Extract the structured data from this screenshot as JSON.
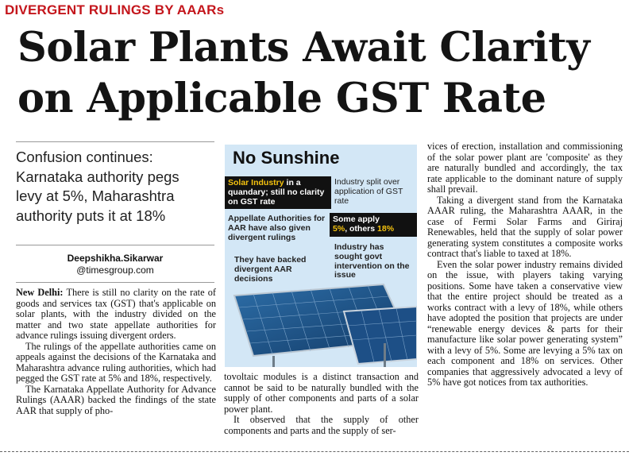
{
  "kicker": "DIVERGENT RULINGS BY AAARs",
  "headline": {
    "line1": "Solar Plants Await Clarity",
    "line2": "on Applicable GST Rate"
  },
  "deck": {
    "line1": "Confusion continues:",
    "line2": "Karnataka authority pegs",
    "line3": "levy at 5%, Maharashtra",
    "line4": "authority puts it at 18%"
  },
  "byline": {
    "name": "Deepshikha.Sikarwar",
    "email": "@timesgroup.com"
  },
  "graphic": {
    "title": "No Sunshine",
    "box1": {
      "highlight": "Solar Industry",
      "rest": "in a quandary; still no clarity on GST rate"
    },
    "box2": "Industry split over application of GST rate",
    "box3": "Appellate Authorities for AAR have also given divergent rulings",
    "box4": {
      "line1": "Some apply",
      "pct5": "5%",
      "mid": ", others",
      "pct18": "18%"
    },
    "box5": "They have backed divergent AAR decisions",
    "box6": "Industry has sought govt intervention on the issue"
  },
  "col1": {
    "dateline": "New Delhi:",
    "p1": "There is still no clarity on the rate of goods and services tax (GST) that's applicable on solar plants, with the industry divided on the matter and two state appellate authorities for advance rulings issuing divergent orders.",
    "p2": "The rulings of the appellate authorities came on appeals against the decisions of the Karnataka and Maharashtra advance ruling authorities, which had pegged the GST rate at 5% and 18%, respectively.",
    "p3": "The Karnataka Appellate Authority for Advance Rulings (AAAR) backed the findings of the state AAR that supply of pho-"
  },
  "col2": {
    "p1": "tovoltaic modules is a distinct transaction and cannot be said to be naturally bundled with the supply of other components and parts of a solar power plant.",
    "p2": "It observed that the supply of other components and parts and the supply of ser-"
  },
  "col3": {
    "p1": "vices of erection, installation and commissioning of the solar power plant are 'composite' as they are naturally bundled and accordingly, the tax rate applicable to the dominant nature of supply shall prevail.",
    "p2": "Taking a divergent stand from the Karnataka AAAR ruling, the Maharashtra AAAR, in the case of Fermi Solar Farms and Giriraj Renewables, held that the supply of solar power generating system constitutes a composite works contract that's liable to taxed at 18%.",
    "p3": "Even the solar power industry remains divided on the issue, with players taking varying positions. Some have taken a conservative view that the entire project should be treated as a works contract with a levy of 18%, while others have adopted the position that projects are under “renewable energy devices & parts for their manufacture like solar power generating system” with a levy of 5%. Some are levying a 5% tax on each component and 18% on services. Other companies that aggressively advocated a levy of 5% have got notices from tax authorities."
  },
  "colors": {
    "kicker": "#c4161c",
    "graphic_bg": "#d3e7f6",
    "highlight": "#f4c20f"
  }
}
